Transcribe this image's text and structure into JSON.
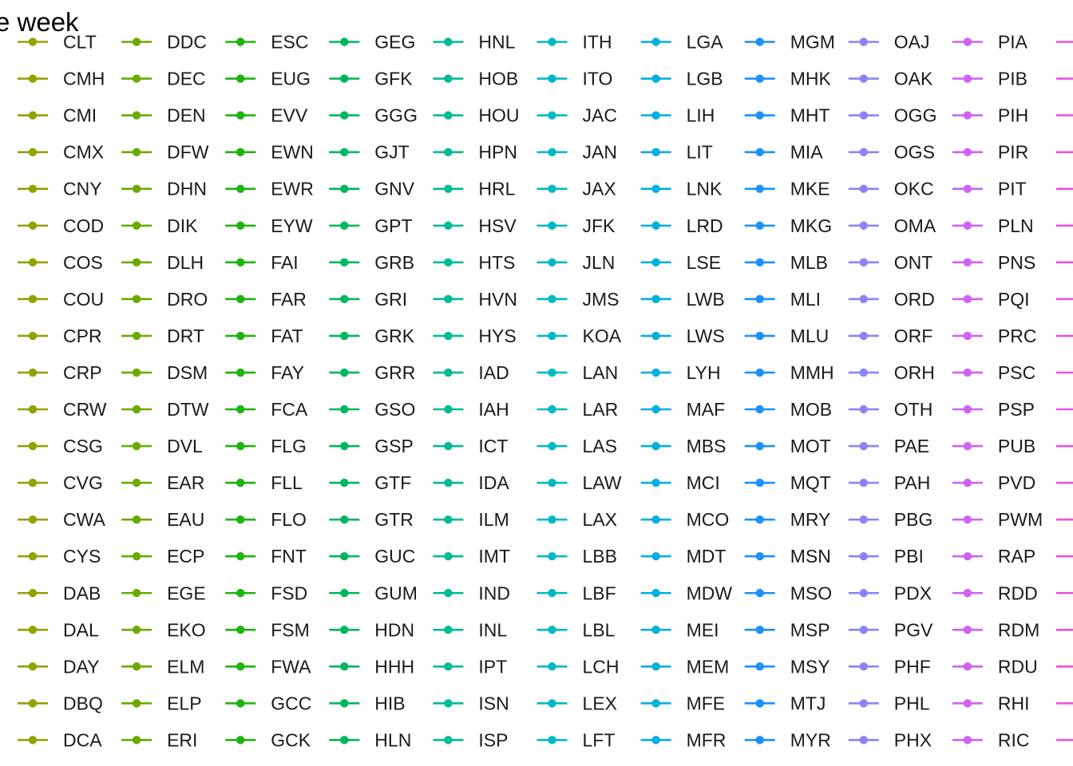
{
  "chart_data": {
    "type": "line",
    "title": "e week",
    "legend": {
      "placement": "full-panel",
      "columns": [
        {
          "color": "#93A200",
          "items": [
            "CLT",
            "CMH",
            "CMI",
            "CMX",
            "CNY",
            "COD",
            "COS",
            "COU",
            "CPR",
            "CRP",
            "CRW",
            "CSG",
            "CVG",
            "CWA",
            "CYS",
            "DAB",
            "DAL",
            "DAY",
            "DBQ",
            "DCA"
          ]
        },
        {
          "color": "#6BAA00",
          "items": [
            "DDC",
            "DEC",
            "DEN",
            "DFW",
            "DHN",
            "DIK",
            "DLH",
            "DRO",
            "DRT",
            "DSM",
            "DTW",
            "DVL",
            "EAR",
            "EAU",
            "ECP",
            "EGE",
            "EKO",
            "ELM",
            "ELP",
            "ERI"
          ]
        },
        {
          "color": "#1FB30E",
          "items": [
            "ESC",
            "EUG",
            "EVV",
            "EWN",
            "EWR",
            "EYW",
            "FAI",
            "FAR",
            "FAT",
            "FAY",
            "FCA",
            "FLG",
            "FLL",
            "FLO",
            "FNT",
            "FSD",
            "FSM",
            "FWA",
            "GCC",
            "GCK"
          ]
        },
        {
          "color": "#00B65E",
          "items": [
            "GEG",
            "GFK",
            "GGG",
            "GJT",
            "GNV",
            "GPT",
            "GRB",
            "GRI",
            "GRK",
            "GRR",
            "GSO",
            "GSP",
            "GTF",
            "GTR",
            "GUC",
            "GUM",
            "HDN",
            "HHH",
            "HIB",
            "HLN"
          ]
        },
        {
          "color": "#00BA96",
          "items": [
            "HNL",
            "HOB",
            "HOU",
            "HPN",
            "HRL",
            "HSV",
            "HTS",
            "HVN",
            "HYS",
            "IAD",
            "IAH",
            "ICT",
            "IDA",
            "ILM",
            "IMT",
            "IND",
            "INL",
            "IPT",
            "ISN",
            "ISP"
          ]
        },
        {
          "color": "#00BAC3",
          "items": [
            "ITH",
            "ITO",
            "JAC",
            "JAN",
            "JAX",
            "JFK",
            "JLN",
            "JMS",
            "KOA",
            "LAN",
            "LAR",
            "LAS",
            "LAW",
            "LAX",
            "LBB",
            "LBF",
            "LBL",
            "LCH",
            "LEX",
            "LFT"
          ]
        },
        {
          "color": "#00AFE0",
          "items": [
            "LGA",
            "LGB",
            "LIH",
            "LIT",
            "LNK",
            "LRD",
            "LSE",
            "LWB",
            "LWS",
            "LYH",
            "MAF",
            "MBS",
            "MCI",
            "MCO",
            "MDT",
            "MDW",
            "MEI",
            "MEM",
            "MFE",
            "MFR"
          ]
        },
        {
          "color": "#1C91FA",
          "items": [
            "MGM",
            "MHK",
            "MHT",
            "MIA",
            "MKE",
            "MKG",
            "MLB",
            "MLI",
            "MLU",
            "MMH",
            "MOB",
            "MOT",
            "MQT",
            "MRY",
            "MSN",
            "MSO",
            "MSP",
            "MSY",
            "MTJ",
            "MYR"
          ]
        },
        {
          "color": "#8B83F8",
          "items": [
            "OAJ",
            "OAK",
            "OGG",
            "OGS",
            "OKC",
            "OMA",
            "ONT",
            "ORD",
            "ORF",
            "ORH",
            "OTH",
            "PAE",
            "PAH",
            "PBG",
            "PBI",
            "PDX",
            "PGV",
            "PHF",
            "PHL",
            "PHX"
          ]
        },
        {
          "color": "#CF62F3",
          "items": [
            "PIA",
            "PIB",
            "PIH",
            "PIR",
            "PIT",
            "PLN",
            "PNS",
            "PQI",
            "PRC",
            "PSC",
            "PSP",
            "PUB",
            "PVD",
            "PWM",
            "RAP",
            "RDD",
            "RDM",
            "RDU",
            "RHI",
            "RIC"
          ]
        }
      ],
      "edge_color": "#ED50DC"
    }
  }
}
